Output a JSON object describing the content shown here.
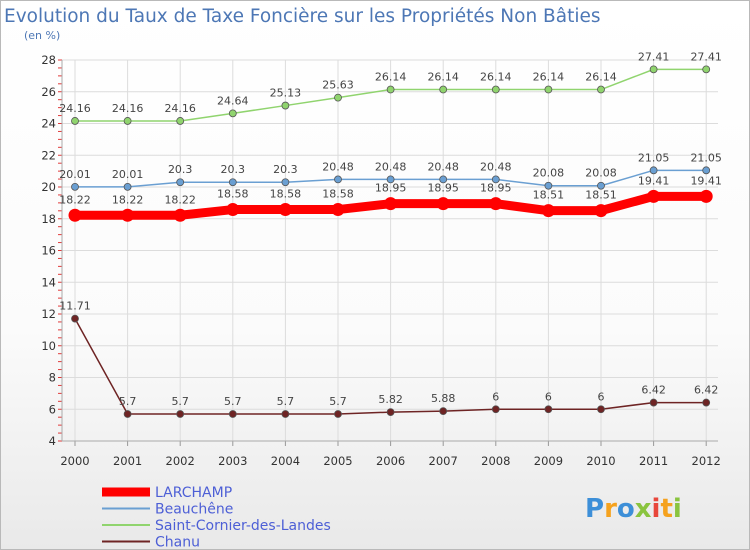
{
  "chart_data": {
    "type": "line",
    "title": "Evolution du Taux de Taxe Foncière sur les Propriétés Non Bâties",
    "ylabel": "(en %)",
    "xlabel": "",
    "ylim": [
      4,
      28
    ],
    "yticks": [
      "4",
      "6",
      "8",
      "10",
      "12",
      "14",
      "16",
      "18",
      "20",
      "22",
      "24",
      "26",
      "28"
    ],
    "x": [
      "2000",
      "2001",
      "2002",
      "2003",
      "2004",
      "2005",
      "2006",
      "2007",
      "2008",
      "2009",
      "2010",
      "2011",
      "2012"
    ],
    "grid": true,
    "legend_position": "bottom-left",
    "series": [
      {
        "name": "LARCHAMP",
        "color": "#ff0000",
        "values": [
          18.22,
          18.22,
          18.22,
          18.58,
          18.58,
          18.58,
          18.95,
          18.95,
          18.95,
          18.51,
          18.51,
          19.41,
          19.41
        ],
        "labels": [
          "18.22",
          "18.22",
          "18.22",
          "18.58",
          "18.58",
          "18.58",
          "18.95",
          "18.95",
          "18.95",
          "18.51",
          "18.51",
          "19.41",
          "19.41"
        ]
      },
      {
        "name": "Beauchêne",
        "color": "#6a9fd2",
        "values": [
          20.01,
          20.01,
          20.3,
          20.3,
          20.3,
          20.48,
          20.48,
          20.48,
          20.48,
          20.08,
          20.08,
          21.05,
          21.05
        ],
        "labels": [
          "20.01",
          "20.01",
          "20.3",
          "20.3",
          "20.3",
          "20.48",
          "20.48",
          "20.48",
          "20.48",
          "20.08",
          "20.08",
          "21.05",
          "21.05"
        ]
      },
      {
        "name": "Saint-Cornier-des-Landes",
        "color": "#90d46e",
        "values": [
          24.16,
          24.16,
          24.16,
          24.64,
          25.13,
          25.63,
          26.14,
          26.14,
          26.14,
          26.14,
          26.14,
          27.41,
          27.41
        ],
        "labels": [
          "24.16",
          "24.16",
          "24.16",
          "24.64",
          "25.13",
          "25.63",
          "26.14",
          "26.14",
          "26.14",
          "26.14",
          "26.14",
          "27.41",
          "27.41"
        ]
      },
      {
        "name": "Chanu",
        "color": "#6e2424",
        "values": [
          11.71,
          5.7,
          5.7,
          5.7,
          5.7,
          5.7,
          5.82,
          5.88,
          6,
          6,
          6,
          6.42,
          6.42
        ],
        "labels": [
          "11.71",
          "5.7",
          "5.7",
          "5.7",
          "5.7",
          "5.7",
          "5.82",
          "5.88",
          "6",
          "6",
          "6",
          "6.42",
          "6.42"
        ]
      }
    ]
  },
  "logo": {
    "text": "Proxiti",
    "letter_colors": [
      "#3d8fd8",
      "#f5a21e",
      "#3d8fd8",
      "#8ac43f",
      "#e8473b",
      "#f5a21e",
      "#8ac43f"
    ]
  }
}
